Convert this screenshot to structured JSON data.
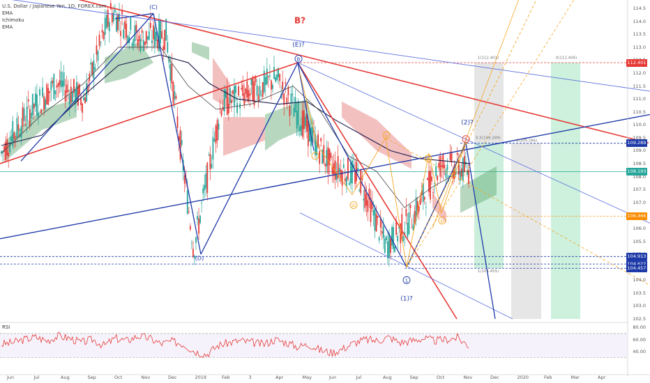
{
  "legend": {
    "symbol_line": "U.S. Dollar / Japanese Yen, 1D, FOREX.com",
    "indicators": [
      "EMA",
      "Ichimoku",
      "EMA"
    ]
  },
  "chart_data": {
    "type": "candlestick",
    "symbol": "U.S. Dollar / Japanese Yen",
    "timeframe": "1D",
    "source": "FOREX.com",
    "y_axis_ticks": [
      114.5,
      114.0,
      113.5,
      113.0,
      112.5,
      112.0,
      111.5,
      111.0,
      110.5,
      110.0,
      109.5,
      109.0,
      108.5,
      108.0,
      107.5,
      107.0,
      106.5,
      106.0,
      105.5,
      105.0,
      104.5,
      104.0,
      103.5,
      103.0,
      102.5
    ],
    "ylim": [
      102.5,
      114.6
    ],
    "x_axis_ticks": [
      "Jun",
      "Jul",
      "Aug",
      "Sep",
      "Oct",
      "Nov",
      "Dec",
      "2019",
      "Feb",
      "3",
      "Apr",
      "May",
      "Jun",
      "Jul",
      "Aug",
      "Sep",
      "Oct",
      "Nov",
      "Dec",
      "2020",
      "Feb",
      "Mar",
      "Apr"
    ],
    "price_path": [
      [
        "Jun",
        108.9
      ],
      [
        "Jul",
        110.5
      ],
      [
        "Aug",
        111.6
      ],
      [
        "Sep",
        111.0
      ],
      [
        "Oct",
        114.4
      ],
      [
        "Nov",
        113.3
      ],
      [
        "Dec",
        113.5
      ],
      [
        "2019",
        105.2
      ],
      [
        "Feb",
        110.8
      ],
      [
        "3",
        111.2
      ],
      [
        "Apr",
        111.8
      ],
      [
        "May",
        110.0
      ],
      [
        "Jun",
        108.4
      ],
      [
        "Jul",
        108.0
      ],
      [
        "Aug",
        105.3
      ],
      [
        "Sep",
        106.5
      ],
      [
        "Oct",
        108.5
      ],
      [
        "Nov",
        108.2
      ]
    ],
    "price_labels": [
      {
        "value": "112.401",
        "color": "#e53935"
      },
      {
        "value": "109.289",
        "color": "#1e3aa8"
      },
      {
        "value": "108.193",
        "color": "#26a69a"
      },
      {
        "value": "106.466",
        "color": "#fb8c00"
      },
      {
        "value": "104.913",
        "color": "#1e3aa8"
      },
      {
        "value": "104.622",
        "color": "#1e3aa8"
      },
      {
        "value": "104.457",
        "color": "#1e3aa8"
      }
    ],
    "rsi": {
      "label": "RSI",
      "ticks": [
        "80.00",
        "60.00",
        "40.00"
      ],
      "ylim": [
        20,
        85
      ],
      "values": [
        52,
        55,
        60,
        64,
        58,
        66,
        62,
        55,
        60,
        50,
        62,
        58,
        66,
        62,
        53,
        57,
        52,
        40,
        35,
        50,
        55,
        58,
        55,
        52,
        60,
        55,
        48,
        52,
        42,
        38,
        45,
        55,
        60,
        58,
        64,
        55,
        58,
        62,
        58,
        60,
        63,
        50
      ]
    },
    "wave_labels": [
      {
        "text": "(C)"
      },
      {
        "text": "B?"
      },
      {
        "text": "(E)?"
      },
      {
        "text": "B"
      },
      {
        "text": "(D)"
      },
      {
        "text": "i"
      },
      {
        "text": "iii"
      },
      {
        "text": "iv"
      },
      {
        "text": "(2)?"
      },
      {
        "text": "2"
      },
      {
        "text": "a"
      },
      {
        "text": "b"
      },
      {
        "text": "1"
      },
      {
        "text": "(1)?"
      }
    ],
    "zone_labels": [
      "1(112.401)",
      "0(112.406)",
      "0.5(109.289)",
      "0(109.286)",
      "1(104.455)"
    ]
  },
  "colors": {
    "bull": "#26a69a",
    "bear": "#e53935",
    "red_line": "#e53935",
    "blue_line": "#1e3aa8",
    "light_blue": "#5b6ee0",
    "orange": "#f5a623",
    "cloud_green": "#5fa870",
    "cloud_red": "#e57373",
    "zone_green": "#c8efd9",
    "zone_gray": "#dcdcdc",
    "rsi_line": "#e53935",
    "ema_dark": "#1a1a4a"
  }
}
